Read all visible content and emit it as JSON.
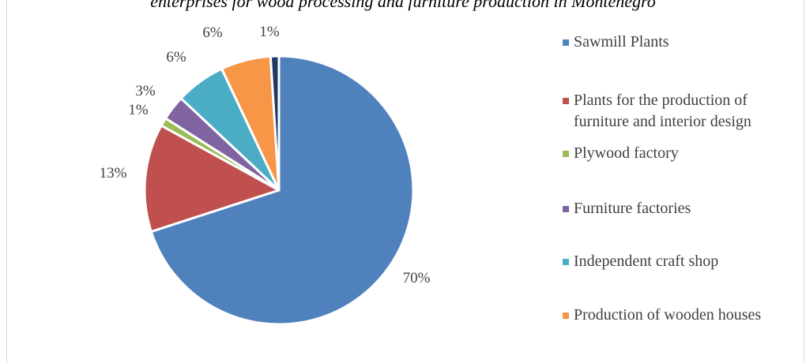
{
  "chart_data": {
    "type": "pie",
    "title": "enterprises for wood processing and furniture production in Montenegro",
    "categories": [
      "Sawmill Plants",
      "Plants for the production of furniture and interior design",
      "Plywood factory",
      "Furniture factories",
      "Independent craft shop",
      "Production of wooden houses",
      ""
    ],
    "values": [
      70,
      13,
      1,
      3,
      6,
      6,
      1
    ],
    "data_labels": [
      "70%",
      "13%",
      "1%",
      "3%",
      "6%",
      "6%",
      "1%"
    ],
    "colors": [
      "#4f81bd",
      "#c0504d",
      "#9bbb59",
      "#8064a2",
      "#4bacc6",
      "#f79646",
      "#1f3864"
    ],
    "legend": {
      "position": "right",
      "entries": [
        "Sawmill Plants",
        "Plants for the production of furniture and interior design",
        "Plywood factory",
        "Furniture factories",
        "Independent craft shop",
        "Production of wooden houses"
      ]
    },
    "start_angle": "12 o'clock",
    "direction": "clockwise"
  }
}
